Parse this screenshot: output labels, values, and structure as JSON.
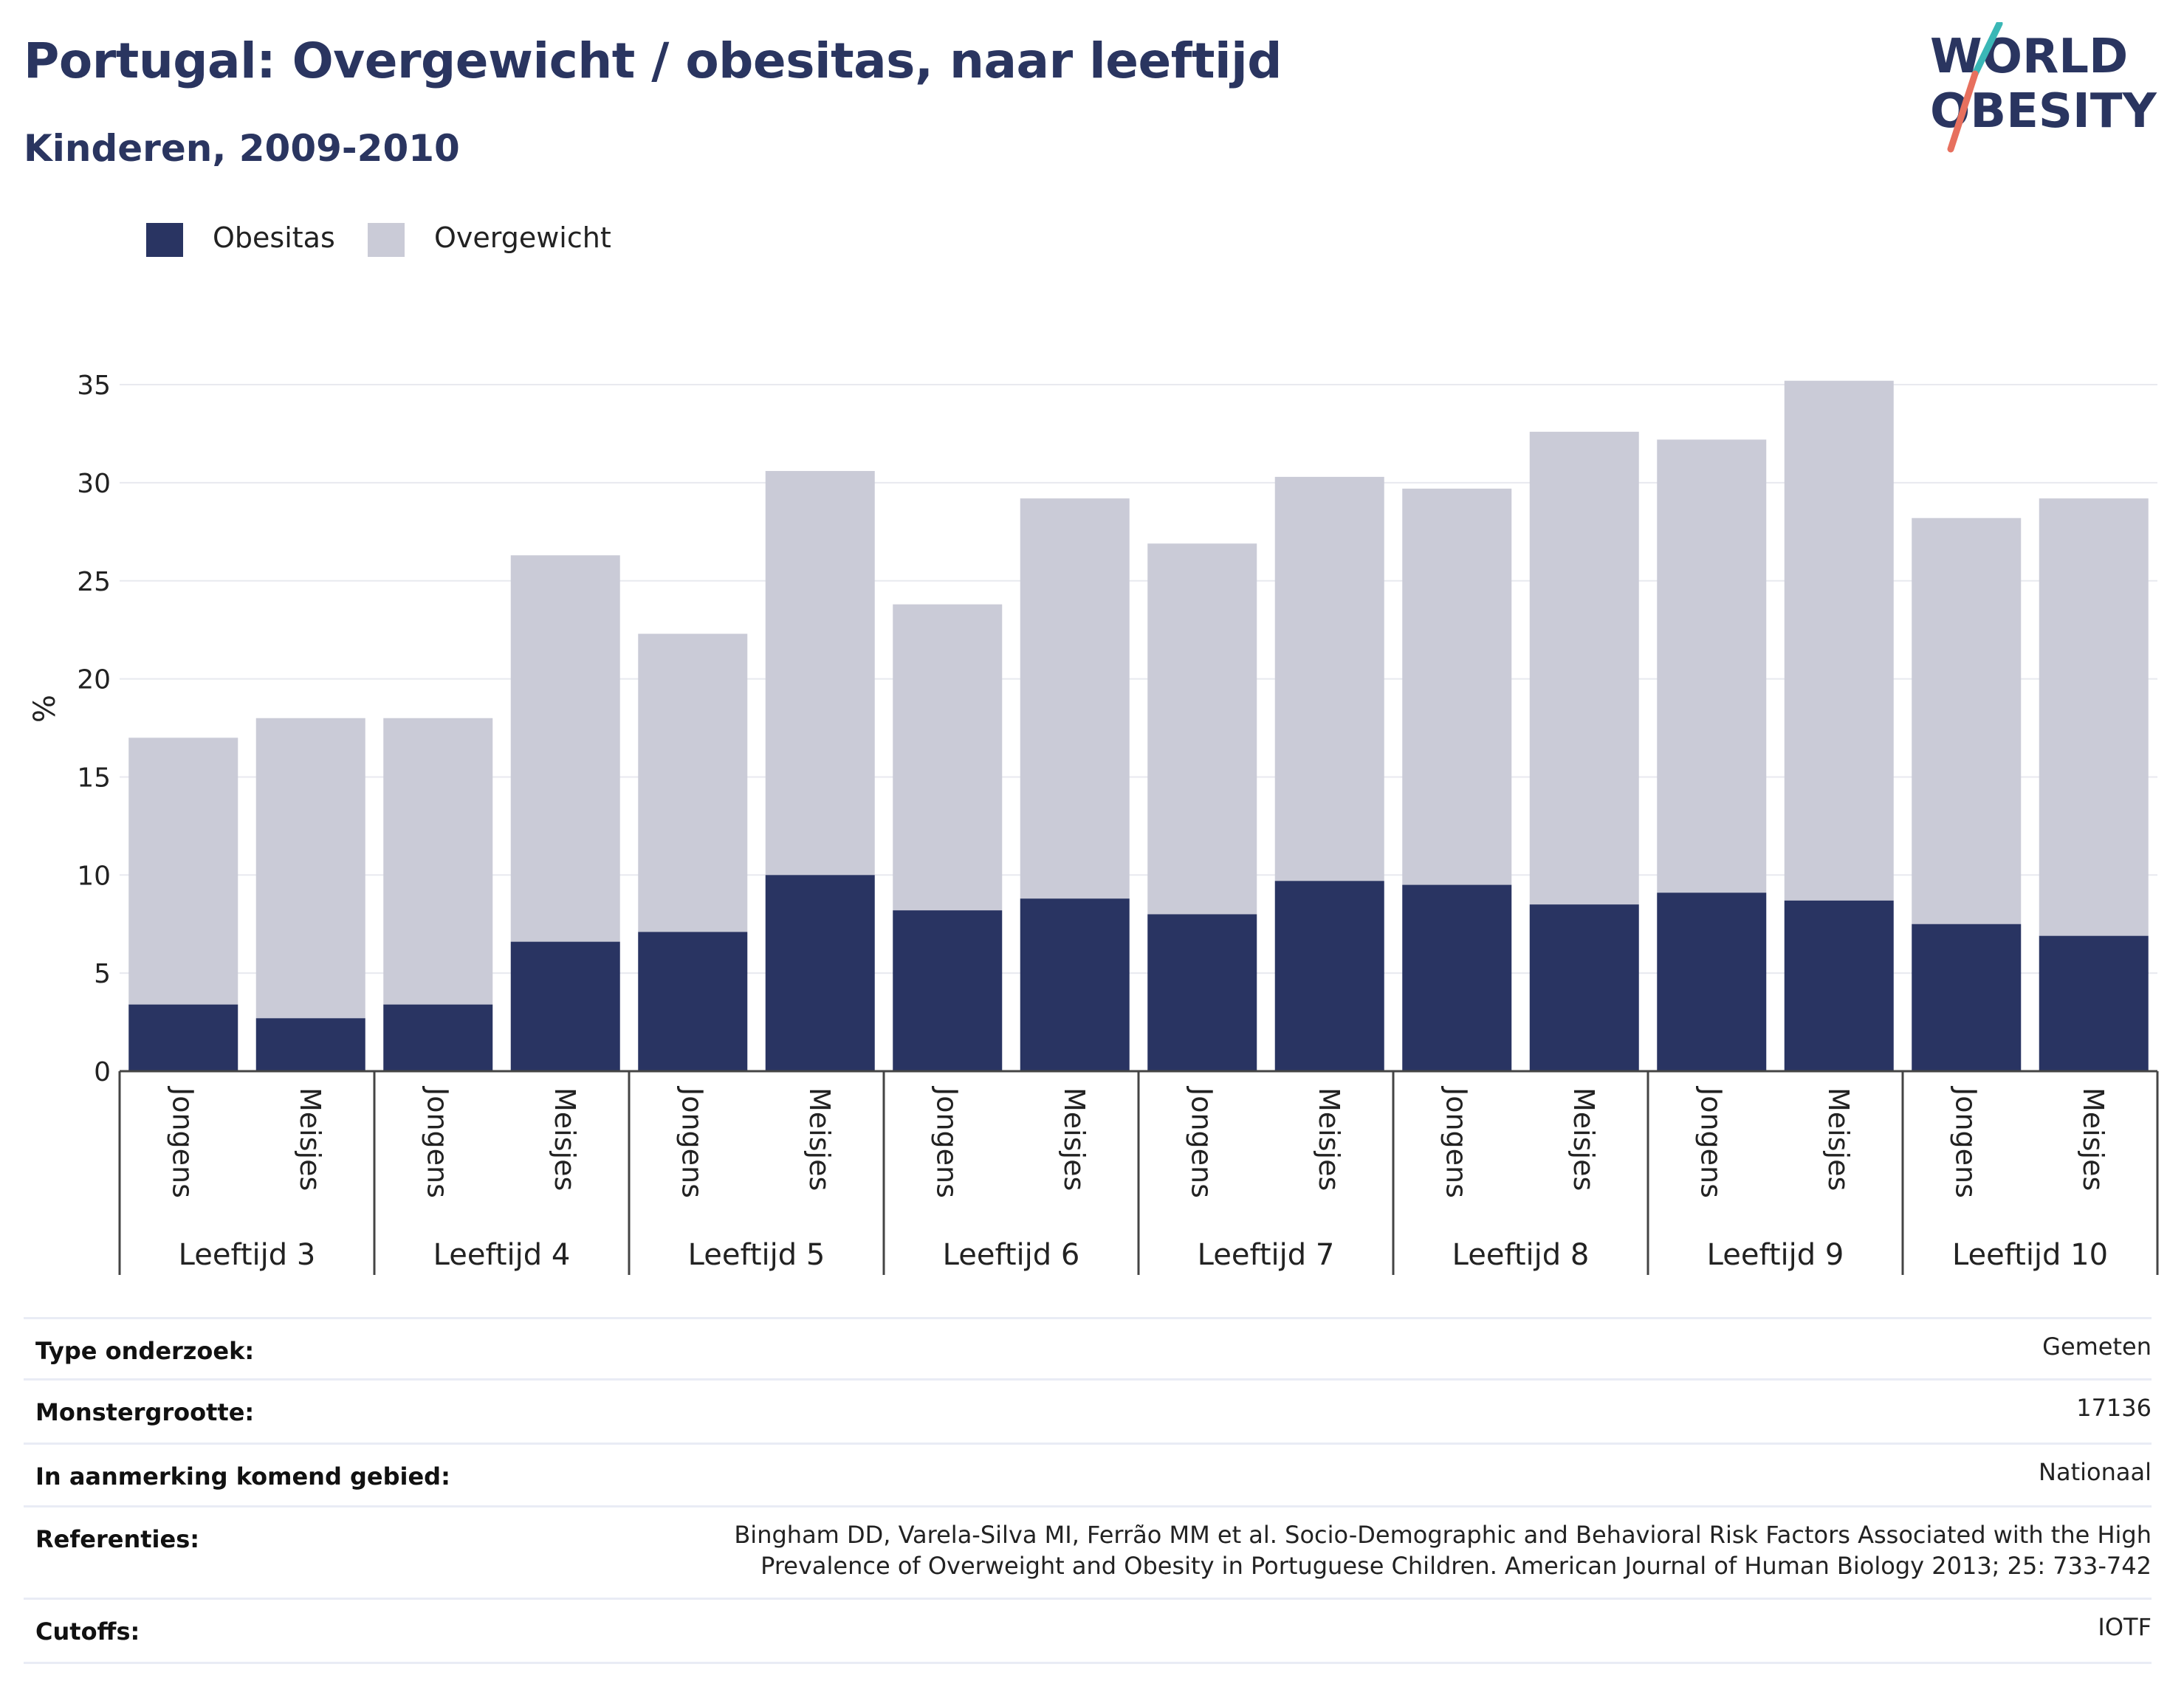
{
  "title": "Portugal: Overgewicht / obesitas, naar leeftijd",
  "subtitle": "Kinderen, 2009-2010",
  "logo": {
    "line1": "WORLD",
    "line2": "OBESITY"
  },
  "colors": {
    "obesitas": "#293462",
    "overgewicht": "#cacbd7",
    "title": "#2a3560",
    "logo_slash_teal": "#3ab7b6",
    "logo_slash_coral": "#e7705e"
  },
  "chart_data": {
    "type": "bar",
    "stacked": true,
    "ylabel": "%",
    "ylim": [
      0,
      36
    ],
    "yticks": [
      0,
      5,
      10,
      15,
      20,
      25,
      30,
      35
    ],
    "grid": true,
    "legend": {
      "placement": "top-left",
      "entries": [
        "Obesitas",
        "Overgewicht"
      ]
    },
    "groups": [
      "Leeftijd 3",
      "Leeftijd 4",
      "Leeftijd 5",
      "Leeftijd 6",
      "Leeftijd 7",
      "Leeftijd 8",
      "Leeftijd 9",
      "Leeftijd 10"
    ],
    "subcategories": [
      "Jongens",
      "Meisjes"
    ],
    "series": [
      {
        "name": "Obesitas",
        "values": [
          3.4,
          2.7,
          3.4,
          6.6,
          7.1,
          10.0,
          8.2,
          8.8,
          8.0,
          9.7,
          9.5,
          8.5,
          9.1,
          8.7,
          7.5,
          6.9
        ]
      },
      {
        "name": "Overgewicht",
        "values": [
          13.6,
          15.3,
          14.6,
          19.7,
          15.2,
          20.6,
          15.6,
          20.4,
          18.9,
          20.6,
          20.2,
          24.1,
          23.1,
          26.5,
          20.7,
          22.3
        ]
      }
    ],
    "totals": [
      17.0,
      18.0,
      18.0,
      26.3,
      22.3,
      30.6,
      23.8,
      29.2,
      26.9,
      30.3,
      29.7,
      32.6,
      32.2,
      35.2,
      28.2,
      29.2
    ]
  },
  "info": [
    {
      "key": "Type onderzoek:",
      "value": "Gemeten"
    },
    {
      "key": "Monstergrootte:",
      "value": "17136"
    },
    {
      "key": "In aanmerking komend gebied:",
      "value": "Nationaal"
    },
    {
      "key": "Referenties:",
      "value": "Bingham DD, Varela-Silva MI, Ferrão MM et al. Socio-Demographic and Behavioral Risk Factors Associated with the High Prevalence of Overweight and Obesity in Portuguese Children. American Journal of Human Biology 2013; 25: 733-742"
    },
    {
      "key": "Cutoffs:",
      "value": "IOTF"
    }
  ]
}
